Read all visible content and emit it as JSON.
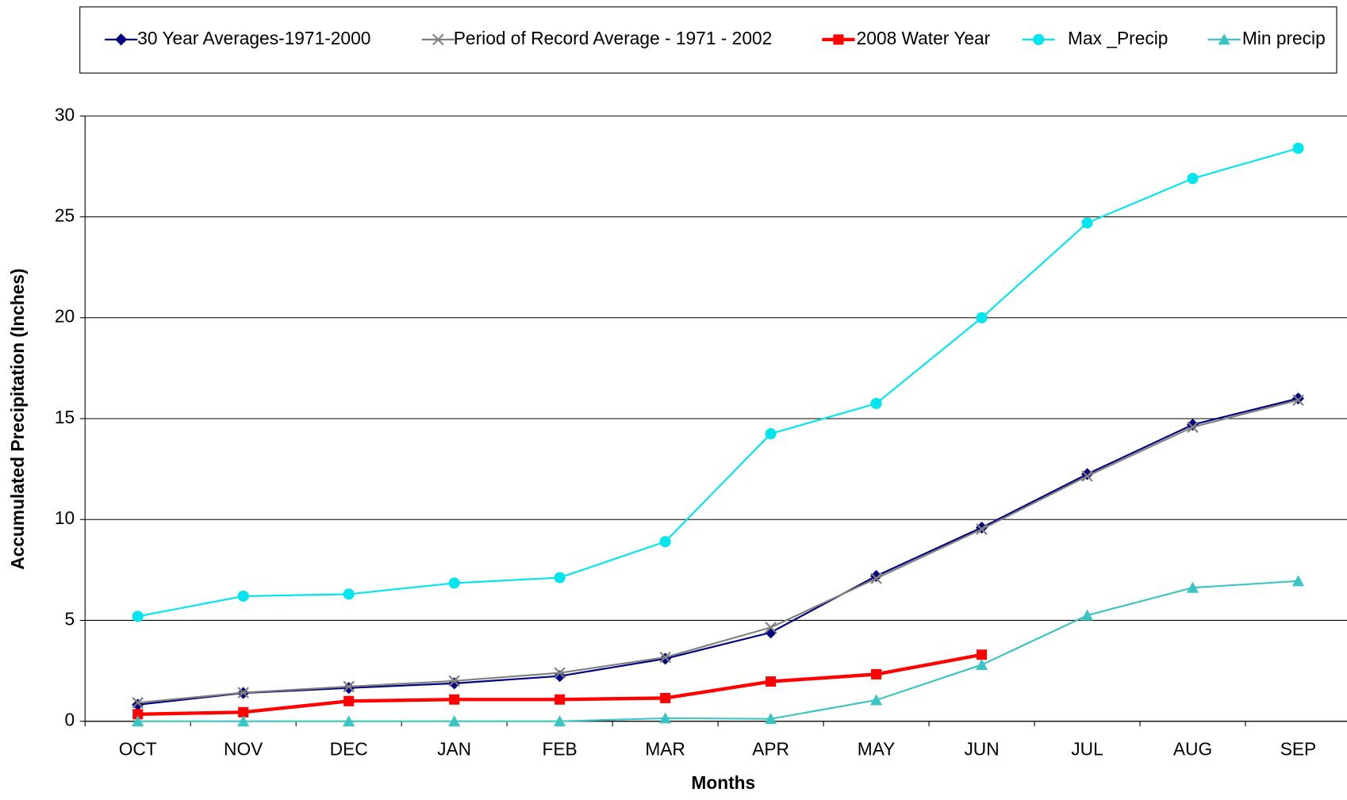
{
  "chart_data": {
    "type": "line",
    "xlabel": "Months",
    "ylabel": "Accumulated Precipitation (Inches)",
    "categories": [
      "OCT",
      "NOV",
      "DEC",
      "JAN",
      "FEB",
      "MAR",
      "APR",
      "MAY",
      "JUN",
      "JUL",
      "AUG",
      "SEP"
    ],
    "series": [
      {
        "name": "30 Year Averages-1971-2000",
        "color": "#000080",
        "marker": "diamond",
        "values": [
          0.82,
          1.4,
          1.65,
          1.88,
          2.24,
          3.1,
          4.4,
          7.2,
          9.6,
          12.25,
          14.7,
          16.0
        ]
      },
      {
        "name": "Period of Record Average - 1971 - 2002",
        "color": "#808080",
        "marker": "x",
        "values": [
          0.92,
          1.42,
          1.72,
          2.0,
          2.4,
          3.17,
          4.65,
          7.08,
          9.52,
          12.15,
          14.58,
          15.92
        ]
      },
      {
        "name": "2008 Water Year",
        "color": "#ff0000",
        "marker": "square",
        "values": [
          0.35,
          0.45,
          1.0,
          1.08,
          1.08,
          1.15,
          1.97,
          2.33,
          3.3,
          null,
          null,
          null
        ]
      },
      {
        "name": "Max _Precip",
        "color": "#00e5ee",
        "marker": "circle",
        "values": [
          5.2,
          6.2,
          6.3,
          6.85,
          7.12,
          8.9,
          14.25,
          15.75,
          20.0,
          24.7,
          26.9,
          28.4
        ]
      },
      {
        "name": "Min precip",
        "color": "#3cc4c4",
        "marker": "triangle",
        "values": [
          0,
          0,
          0,
          0,
          0,
          0.15,
          0.12,
          1.05,
          2.8,
          5.25,
          6.62,
          6.95
        ]
      }
    ],
    "ylim": [
      0,
      30
    ],
    "yticks": [
      0,
      5,
      10,
      15,
      20,
      25,
      30
    ],
    "grid": true,
    "legend": "top"
  }
}
